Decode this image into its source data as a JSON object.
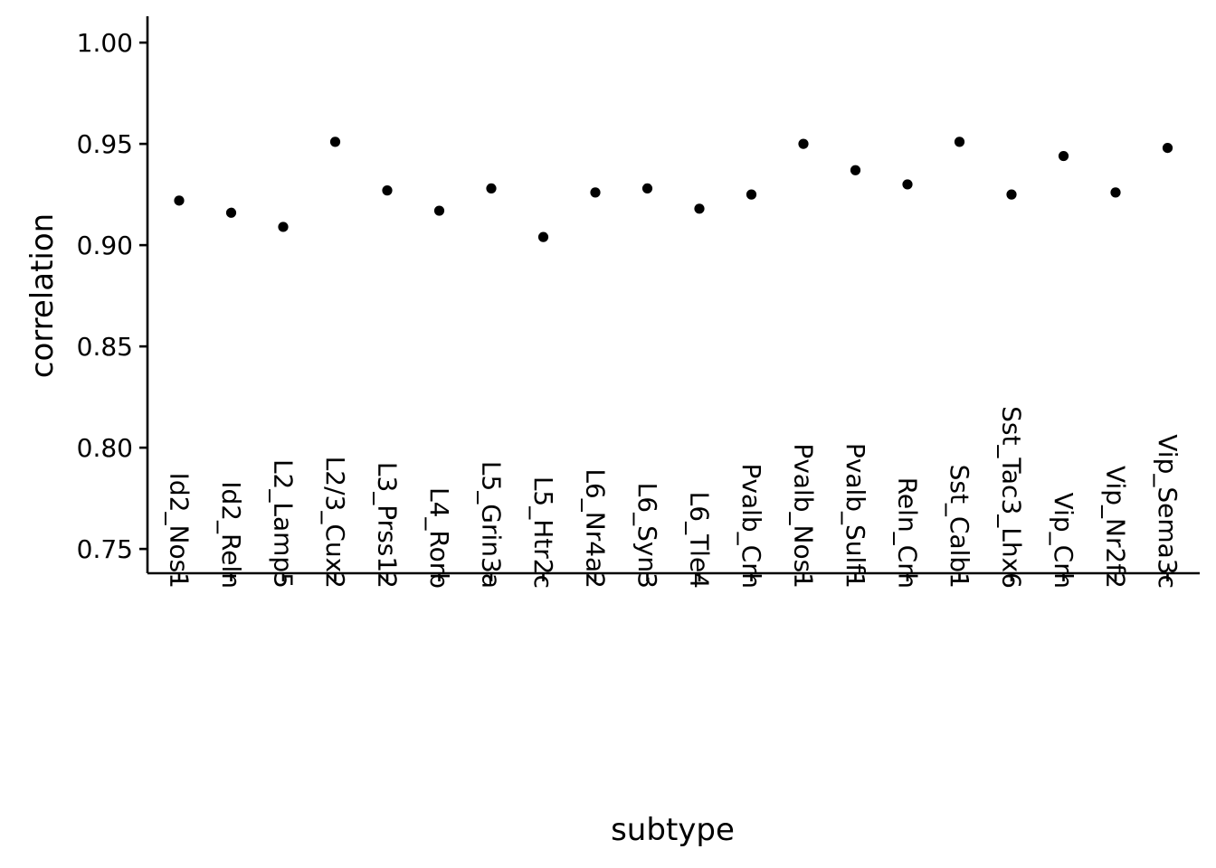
{
  "chart_data": {
    "type": "scatter",
    "categories": [
      "Id2_Nos1",
      "Id2_Reln",
      "L2_Lamp5",
      "L2/3_Cux2",
      "L3_Prss12",
      "L4_Rorb",
      "L5_Grin3a",
      "L5_Htr2c",
      "L6_Nr4a2",
      "L6_Syn3",
      "L6_Tle4",
      "Pvalb_Crh",
      "Pvalb_Nos1",
      "Pvalb_Sulf1",
      "Reln_Crh",
      "Sst_Calb1",
      "Sst_Tac3_Lhx6",
      "Vip_Crh",
      "Vip_Nr2f2",
      "Vip_Sema3c"
    ],
    "series": [
      {
        "values": [
          0.922,
          0.916,
          0.909,
          0.951,
          0.927,
          0.917,
          0.928,
          0.904,
          0.926,
          0.928,
          0.918,
          0.925,
          0.95,
          0.937,
          0.93,
          0.951,
          0.925,
          0.944,
          0.926,
          0.948
        ]
      }
    ],
    "xlabel": "subtype",
    "ylabel": "correlation",
    "ylim": [
      0.738,
      1.013
    ],
    "yticks": [
      "0.75",
      "0.80",
      "0.85",
      "0.90",
      "0.95",
      "1.00"
    ],
    "grid": false,
    "legend": "none"
  },
  "colors": {
    "points": "#000000",
    "axes": "#000000",
    "background": "#ffffff"
  }
}
